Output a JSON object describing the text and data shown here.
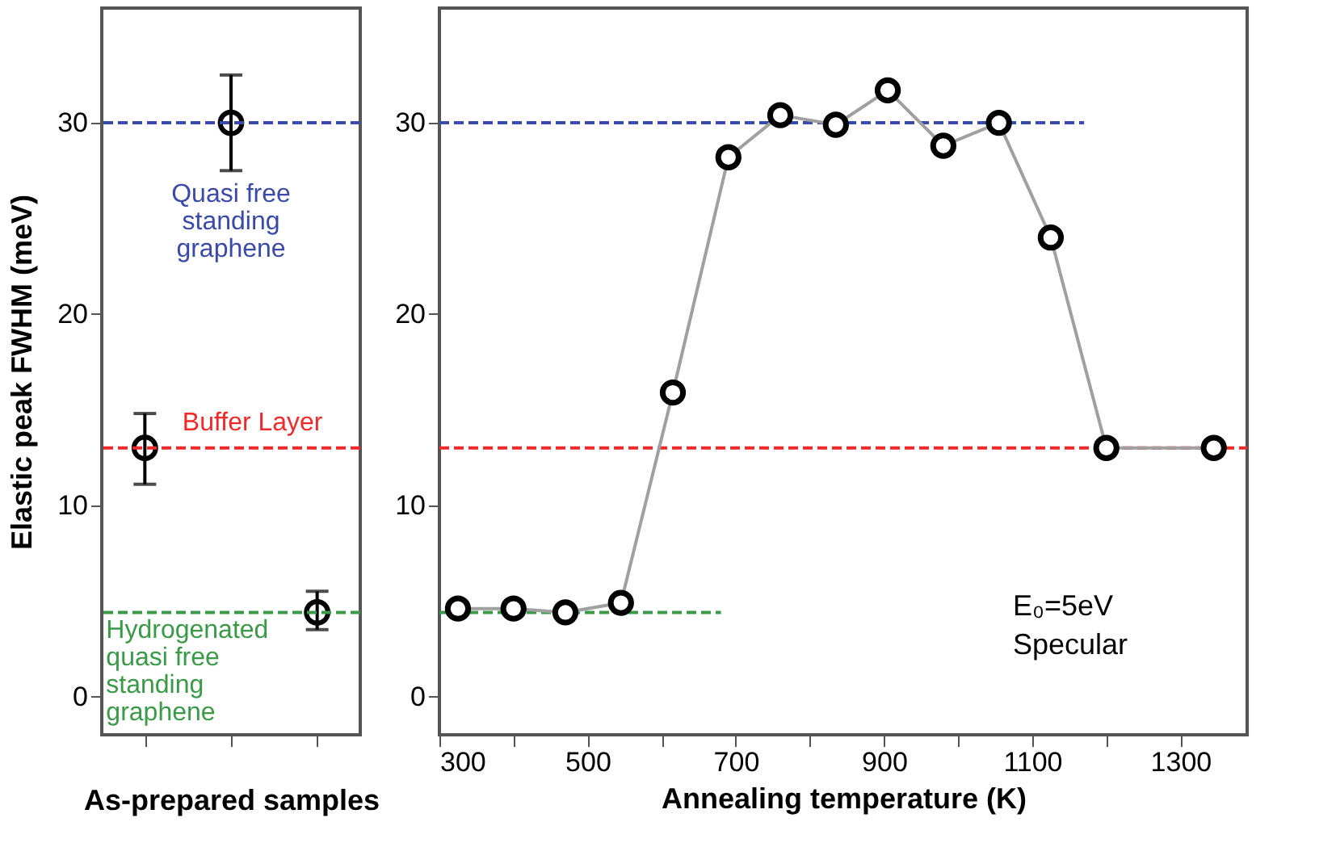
{
  "chart_data": [
    {
      "type": "scatter",
      "categories": [
        null,
        null,
        null
      ],
      "values": [
        13,
        30,
        4.4
      ],
      "errors": [
        [
          11.1,
          14.8
        ],
        [
          27.5,
          32.5
        ],
        [
          3.5,
          5.5
        ]
      ],
      "color": "#000000",
      "marker": "circle",
      "xlabel": "As-prepared samples",
      "ylabel": "Elastic peak FWHM (meV)",
      "ylim": [
        -2,
        36
      ],
      "yticks": [
        0,
        10,
        20,
        30
      ],
      "ref_lines": [
        {
          "axis": "y",
          "value": 13,
          "label": "Buffer Layer",
          "color": "#ee2a2a",
          "line_style": "dashed"
        },
        {
          "axis": "y",
          "value": 30,
          "label": "Quasi free\nstanding\ngraphene",
          "color": "#3a4aa8",
          "line_style": "dashed"
        },
        {
          "axis": "y",
          "value": 4.4,
          "label": "Hydrogenated\nquasi free\nstanding\ngraphene",
          "color": "#3a9a48",
          "line_style": "dashed"
        }
      ]
    },
    {
      "type": "line",
      "marker": "circle",
      "xlabel": "Annealing temperature (K)",
      "xlim": [
        300,
        1390
      ],
      "xticks": [
        300,
        {
          "value": 400,
          "label": null
        },
        500,
        {
          "value": 600,
          "label": null
        },
        700,
        {
          "value": 800,
          "label": null
        },
        900,
        {
          "value": 1000,
          "label": null
        },
        1100,
        {
          "value": 1200,
          "label": null
        },
        1300
      ],
      "ylim": [
        -2,
        36
      ],
      "yticks": [
        0,
        10,
        20,
        30
      ],
      "series": [
        {
          "color": "#3a4aa8",
          "x": [
            300,
            1170
          ],
          "values": [
            30,
            30
          ],
          "line_style": "dashed",
          "marker": "none"
        },
        {
          "color": "#ee2a2a",
          "x": [
            300,
            1390
          ],
          "values": [
            13,
            13
          ],
          "line_style": "dashed",
          "marker": "none"
        },
        {
          "color": "#3a9a48",
          "x": [
            300,
            680
          ],
          "values": [
            4.4,
            4.4
          ],
          "line_style": "dashed",
          "marker": "none"
        },
        {
          "color": "#a0a0a0",
          "x": [
            325,
            400,
            470,
            545,
            615,
            690,
            760,
            835,
            905,
            980,
            1055,
            1125,
            1200,
            1345
          ],
          "values": [
            4.6,
            4.6,
            4.4,
            4.9,
            15.9,
            28.2,
            30.4,
            29.9,
            31.7,
            28.8,
            30.0,
            24.0,
            13.0,
            13.0
          ]
        }
      ],
      "annotations": [
        "E₀=5eV",
        "Specular"
      ]
    }
  ]
}
